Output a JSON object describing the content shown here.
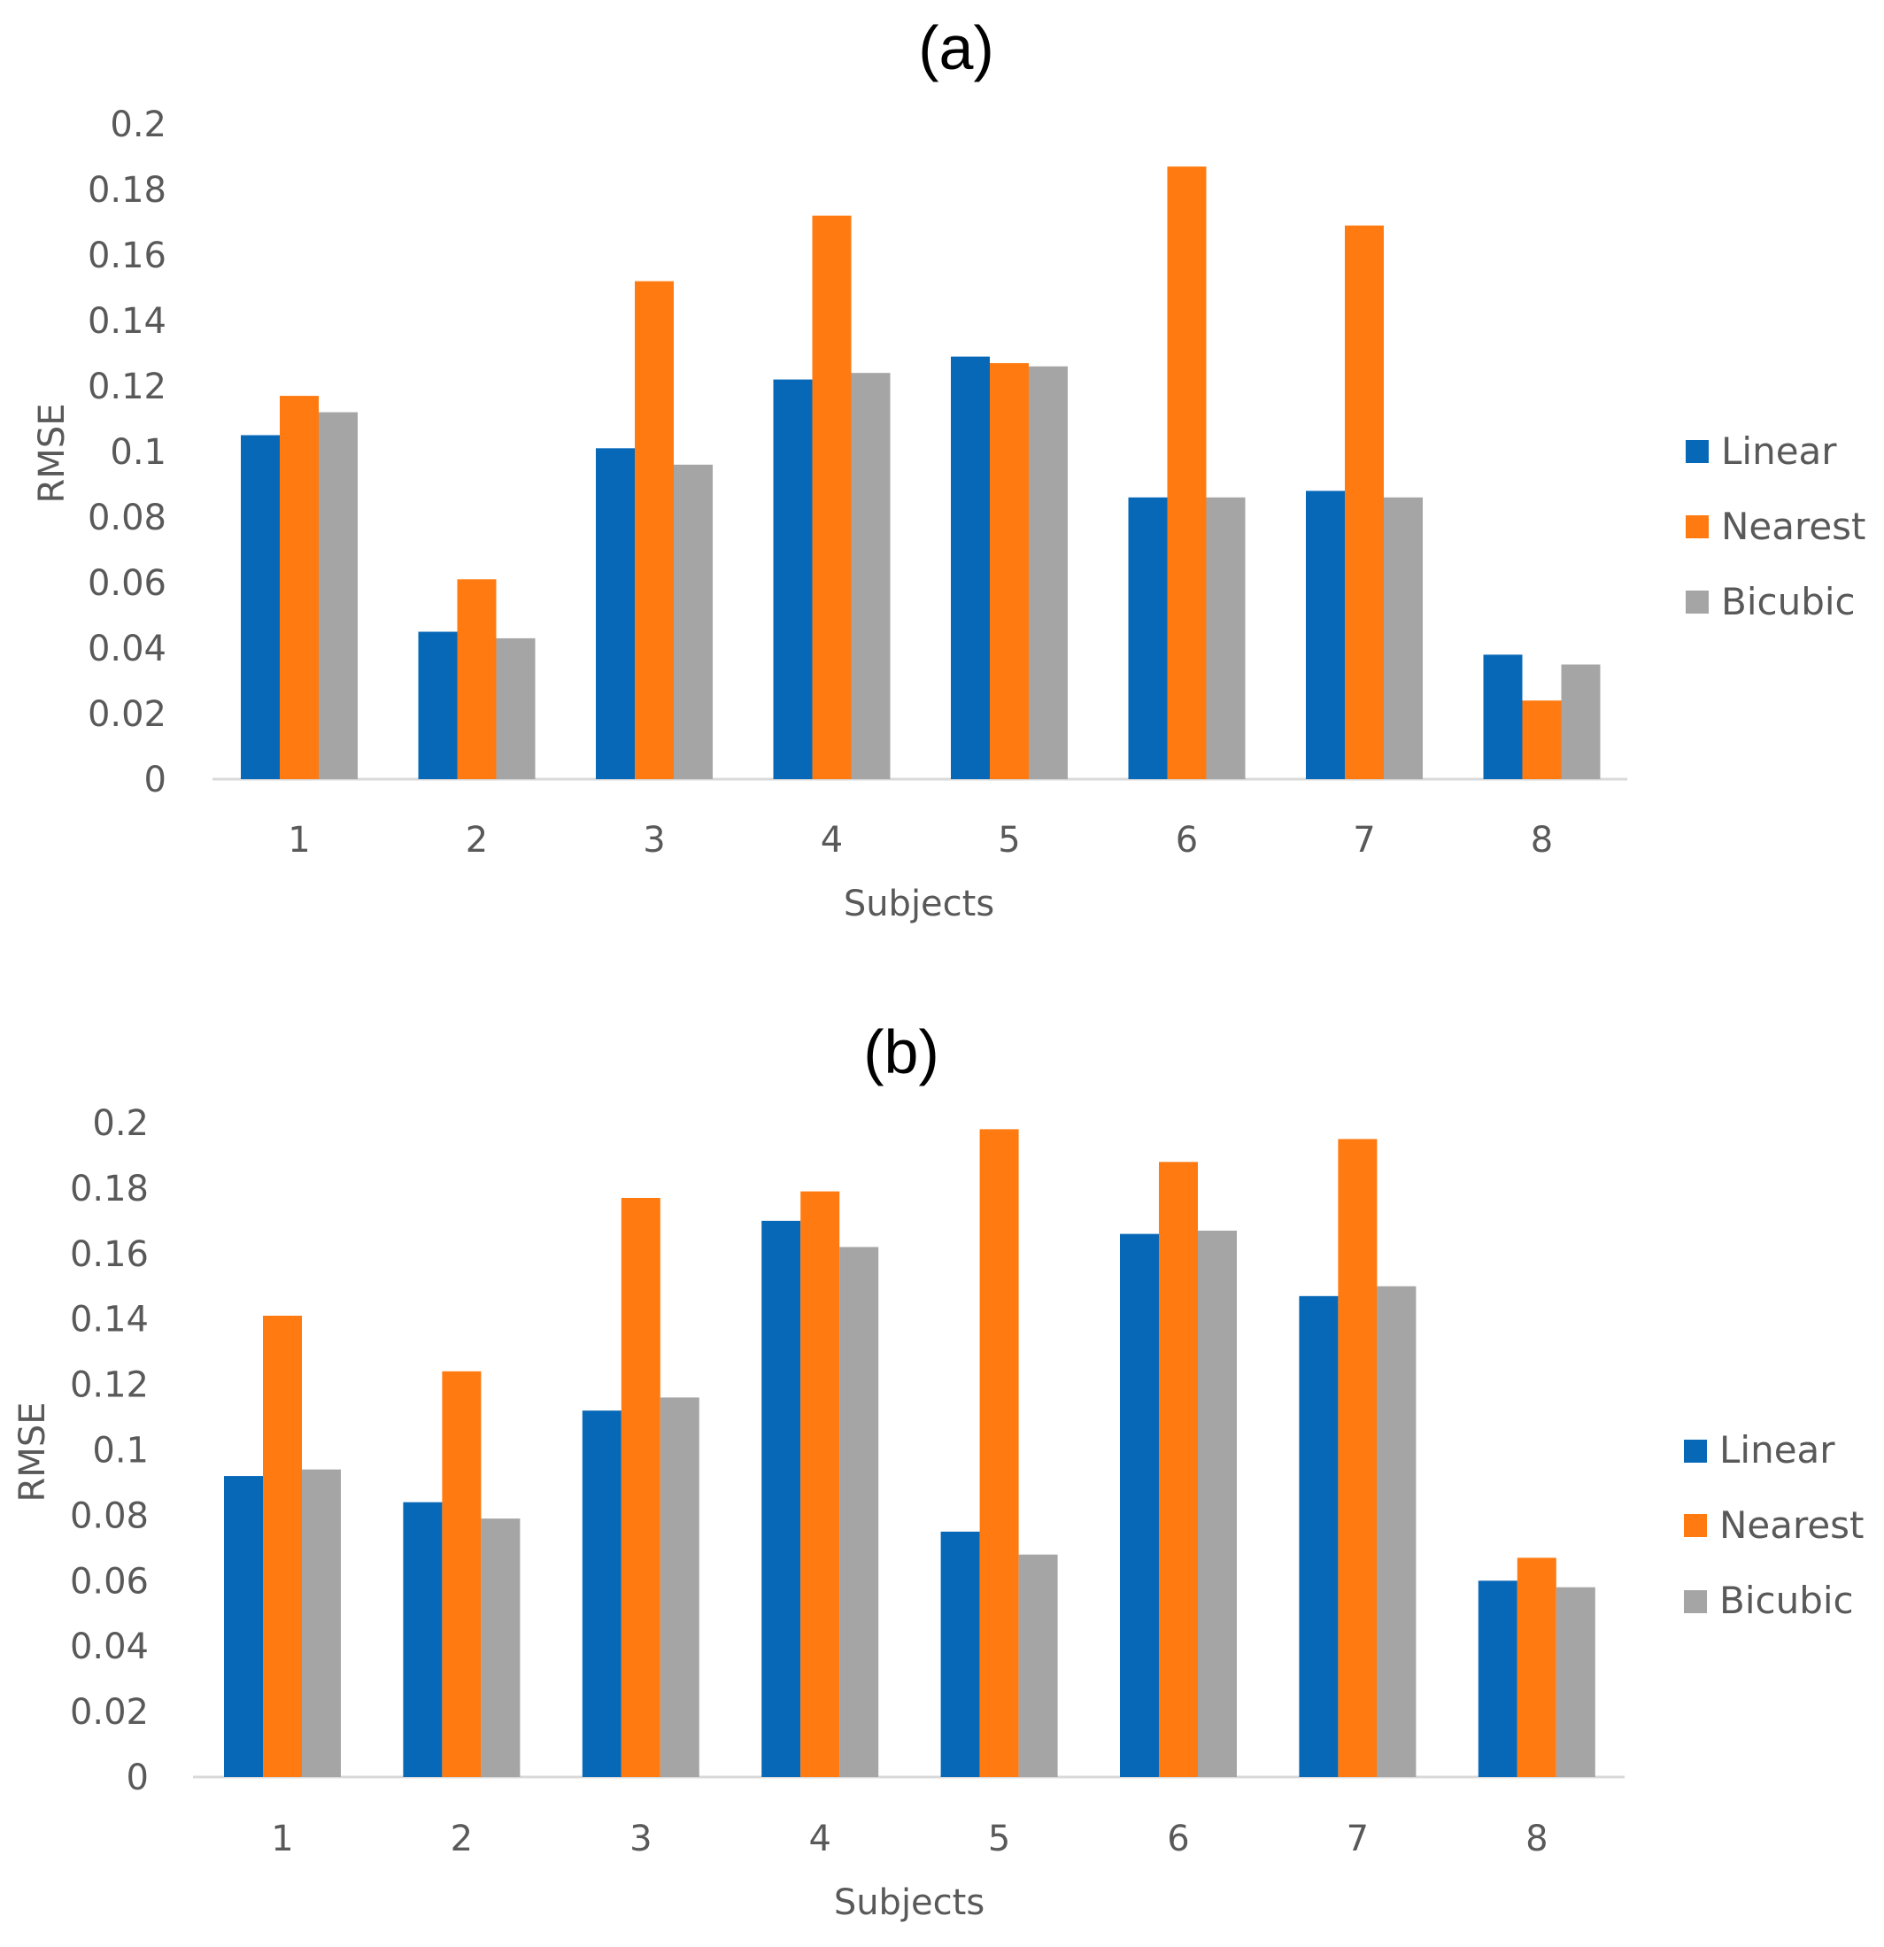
{
  "chart_data": [
    {
      "type": "bar",
      "title": "(a)",
      "xlabel": "Subjects",
      "ylabel": "RMSE",
      "categories": [
        "1",
        "2",
        "3",
        "4",
        "5",
        "6",
        "7",
        "8"
      ],
      "yticks": [
        "0",
        "0.02",
        "0.04",
        "0.06",
        "0.08",
        "0.1",
        "0.12",
        "0.14",
        "0.16",
        "0.18",
        "0.2"
      ],
      "ylim": [
        0,
        0.2
      ],
      "legend_position": "right",
      "grid": false,
      "series": [
        {
          "name": "Linear",
          "color": "#0868B8",
          "values": [
            0.105,
            0.045,
            0.101,
            0.122,
            0.129,
            0.086,
            0.088,
            0.038
          ]
        },
        {
          "name": "Nearest",
          "color": "#FF7A10",
          "values": [
            0.117,
            0.061,
            0.152,
            0.172,
            0.127,
            0.187,
            0.169,
            0.024
          ]
        },
        {
          "name": "Bicubic",
          "color": "#A5A5A5",
          "values": [
            0.112,
            0.043,
            0.096,
            0.124,
            0.126,
            0.086,
            0.086,
            0.035
          ]
        }
      ]
    },
    {
      "type": "bar",
      "title": "(b)",
      "xlabel": "Subjects",
      "ylabel": "RMSE",
      "categories": [
        "1",
        "2",
        "3",
        "4",
        "5",
        "6",
        "7",
        "8"
      ],
      "yticks": [
        "0",
        "0.02",
        "0.04",
        "0.06",
        "0.08",
        "0.1",
        "0.12",
        "0.14",
        "0.16",
        "0.18",
        "0.2"
      ],
      "ylim": [
        0,
        0.2
      ],
      "legend_position": "right",
      "grid": false,
      "series": [
        {
          "name": "Linear",
          "color": "#0868B8",
          "values": [
            0.092,
            0.084,
            0.112,
            0.17,
            0.075,
            0.166,
            0.147,
            0.06
          ]
        },
        {
          "name": "Nearest",
          "color": "#FF7A10",
          "values": [
            0.141,
            0.124,
            0.177,
            0.179,
            0.198,
            0.188,
            0.195,
            0.067
          ]
        },
        {
          "name": "Bicubic",
          "color": "#A5A5A5",
          "values": [
            0.094,
            0.079,
            0.116,
            0.162,
            0.068,
            0.167,
            0.15,
            0.058
          ]
        }
      ]
    }
  ]
}
